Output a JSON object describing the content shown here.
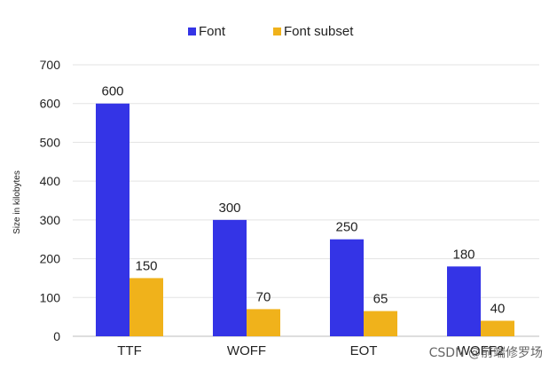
{
  "chart_data": {
    "type": "bar",
    "title": "",
    "xlabel": "",
    "ylabel": "Size in kilobytes",
    "ylim": [
      0,
      700
    ],
    "yticks": [
      0,
      100,
      200,
      300,
      400,
      500,
      600,
      700
    ],
    "grid": true,
    "legend_position": "top-center",
    "categories": [
      "TTF",
      "WOFF",
      "EOT",
      "WOFF2"
    ],
    "series": [
      {
        "name": "Font",
        "color": "#3434e6",
        "values": [
          600,
          300,
          250,
          180
        ]
      },
      {
        "name": "Font subset",
        "color": "#f0b21b",
        "values": [
          150,
          70,
          65,
          40
        ]
      }
    ]
  },
  "watermark": "CSDN @前端修罗场"
}
